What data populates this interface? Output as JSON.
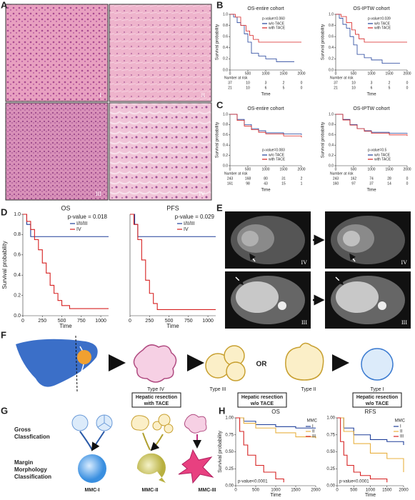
{
  "panel_labels": [
    "A",
    "B",
    "C",
    "D",
    "E",
    "F",
    "G",
    "H"
  ],
  "histology_labels": [
    "I",
    "II",
    "III",
    "IV"
  ],
  "ct_labels": [
    "IV",
    "IV",
    "III",
    "III"
  ],
  "flow": {
    "types": [
      "Type IV",
      "Type III",
      "Type II",
      "Type I"
    ],
    "or": "OR",
    "boxes": [
      [
        "Hepatic resection",
        "with  TACE"
      ],
      [
        "Hepatic resection",
        "w/o TACE"
      ],
      [
        "Hepatic resection",
        "w/o TACE"
      ]
    ]
  },
  "classification": {
    "gross": [
      "Gross",
      "Classfication"
    ],
    "margin": [
      "Margin",
      "Morphology",
      "Classification"
    ],
    "classes": [
      "MMC-I",
      "MMC-II",
      "MMC-III"
    ]
  },
  "plots": [
    {
      "title": "OS-entire cohort",
      "p_value": "p-value=0.060",
      "ylabel": "Survival probability",
      "xlabel": "Time",
      "xlim": [
        0,
        2000
      ],
      "ylim": [
        0,
        1
      ],
      "xticks": [
        0,
        500,
        1000,
        1500,
        2000
      ],
      "yticks": [
        {
          "value": 0,
          "label": "0.0"
        },
        0.2,
        0.4,
        0.6,
        0.8,
        {
          "value": 1,
          "label": "1.0"
        }
      ],
      "series": [
        {
          "name": "w/o TACE",
          "color": "#1f3f99",
          "x": [
            0,
            100,
            200,
            300,
            400,
            500,
            600,
            800,
            1000,
            1300,
            1800
          ],
          "values": [
            1,
            0.95,
            0.85,
            0.8,
            0.65,
            0.5,
            0.3,
            0.25,
            0.2,
            0.15,
            0.15
          ]
        },
        {
          "name": "with TACE",
          "color": "#d62020",
          "x": [
            0,
            150,
            300,
            450,
            550,
            650,
            800,
            1000,
            2000
          ],
          "values": [
            1,
            0.95,
            0.8,
            0.7,
            0.62,
            0.55,
            0.5,
            0.5,
            0.5
          ]
        }
      ],
      "risk_label": "Number at risk",
      "risk": [
        [
          "37",
          "10",
          "3",
          "2",
          "0"
        ],
        [
          "21",
          "10",
          "6",
          "5",
          "0"
        ]
      ]
    },
    {
      "title": "OS-IPTW cohort",
      "p_value": "p-value=0.039",
      "ylabel": "Survival probability",
      "xlabel": "Time",
      "xlim": [
        0,
        2000
      ],
      "ylim": [
        0,
        1
      ],
      "xticks": [
        0,
        500,
        1000,
        1500,
        2000
      ],
      "yticks": [
        {
          "value": 0,
          "label": "0.0"
        },
        0.2,
        0.4,
        0.6,
        0.8,
        {
          "value": 1,
          "label": "1.0"
        }
      ],
      "series": [
        {
          "name": "w/o TACE",
          "color": "#1f3f99",
          "x": [
            0,
            100,
            200,
            300,
            400,
            500,
            600,
            800,
            1000,
            1300,
            1800
          ],
          "values": [
            1,
            0.93,
            0.82,
            0.75,
            0.6,
            0.45,
            0.28,
            0.22,
            0.18,
            0.12,
            0.12
          ]
        },
        {
          "name": "with TACE",
          "color": "#d62020",
          "x": [
            0,
            150,
            300,
            450,
            550,
            650,
            800,
            1000,
            2000
          ],
          "values": [
            1,
            0.96,
            0.85,
            0.72,
            0.64,
            0.56,
            0.5,
            0.5,
            0.5
          ]
        }
      ],
      "risk_label": "Number at risk",
      "risk": [
        [
          "37",
          "10",
          "3",
          "2",
          "0"
        ],
        [
          "21",
          "10",
          "6",
          "5",
          "0"
        ]
      ]
    },
    {
      "title": "OS-entire cohort",
      "p_value": "p-value=0.083",
      "ylabel": "Survival probability",
      "xlabel": "Time",
      "xlim": [
        0,
        2000
      ],
      "ylim": [
        0,
        1
      ],
      "xticks": [
        0,
        500,
        1000,
        1500,
        2000
      ],
      "yticks": [
        {
          "value": 0,
          "label": "0.0"
        },
        0.2,
        0.4,
        0.6,
        0.8,
        {
          "value": 1,
          "label": "1.0"
        }
      ],
      "series": [
        {
          "name": "w/o TACE",
          "color": "#1f3f99",
          "x": [
            0,
            200,
            400,
            600,
            800,
            1000,
            1500,
            2000
          ],
          "values": [
            1,
            0.9,
            0.8,
            0.72,
            0.68,
            0.64,
            0.62,
            0.6
          ]
        },
        {
          "name": "with TACE",
          "color": "#d62020",
          "x": [
            0,
            200,
            400,
            600,
            800,
            1000,
            1500,
            2000
          ],
          "values": [
            1,
            0.88,
            0.77,
            0.7,
            0.65,
            0.62,
            0.58,
            0.55
          ]
        }
      ],
      "risk_label": "Number at risk",
      "risk": [
        [
          "243",
          "168",
          "80",
          "31",
          "2"
        ],
        [
          "161",
          "98",
          "43",
          "15",
          "1"
        ]
      ]
    },
    {
      "title": "OS-IPTW cohort",
      "p_value": "p-value=0.5",
      "ylabel": "Survival probability",
      "xlabel": "Time",
      "xlim": [
        0,
        2000
      ],
      "ylim": [
        0,
        1
      ],
      "xticks": [
        0,
        500,
        1000,
        1500,
        2000
      ],
      "yticks": [
        {
          "value": 0,
          "label": "0.0"
        },
        0.2,
        0.4,
        0.6,
        0.8,
        {
          "value": 1,
          "label": "1.0"
        }
      ],
      "series": [
        {
          "name": "w/o TACE",
          "color": "#1f3f99",
          "x": [
            0,
            200,
            400,
            600,
            800,
            1000,
            1500,
            2000
          ],
          "values": [
            1,
            0.9,
            0.8,
            0.72,
            0.68,
            0.65,
            0.63,
            0.62
          ]
        },
        {
          "name": "with TACE",
          "color": "#d62020",
          "x": [
            0,
            200,
            400,
            600,
            800,
            1000,
            1500,
            2000
          ],
          "values": [
            1,
            0.89,
            0.79,
            0.72,
            0.67,
            0.63,
            0.6,
            0.58
          ]
        }
      ],
      "risk_label": "Number at risk",
      "risk": [
        [
          "243",
          "162",
          "74",
          "28",
          "0"
        ],
        [
          "160",
          "97",
          "37",
          "14",
          "0"
        ]
      ]
    },
    {
      "title": "OS",
      "p_value": "p-value = 0.018",
      "ylabel": "Survival probability",
      "xlabel": "Time",
      "xlim": [
        0,
        1100
      ],
      "ylim": [
        0,
        1
      ],
      "xticks": [
        0,
        250,
        500,
        750,
        1000
      ],
      "yticks": [
        {
          "value": 0,
          "label": "0.0"
        },
        0.2,
        0.4,
        0.6,
        0.8,
        {
          "value": 1,
          "label": "1.0"
        }
      ],
      "series": [
        {
          "name": "I/II/III",
          "color": "#1f3f99",
          "x": [
            0,
            50,
            100,
            1100
          ],
          "values": [
            1,
            0.9,
            0.78,
            0.78
          ]
        },
        {
          "name": "IV",
          "color": "#d62020",
          "x": [
            0,
            50,
            100,
            150,
            200,
            250,
            300,
            350,
            400,
            450,
            500,
            600,
            1100
          ],
          "values": [
            1,
            0.93,
            0.85,
            0.75,
            0.65,
            0.52,
            0.42,
            0.3,
            0.22,
            0.15,
            0.1,
            0.07,
            0.07
          ]
        }
      ]
    },
    {
      "title": "PFS",
      "p_value": "p-value = 0.029",
      "xlabel": "Time",
      "xlim": [
        0,
        1100
      ],
      "ylim": [
        0,
        1
      ],
      "xticks": [
        0,
        250,
        500,
        750,
        1000
      ],
      "series": [
        {
          "name": "I/II/III",
          "color": "#1f3f99",
          "x": [
            0,
            60,
            100,
            1100
          ],
          "values": [
            1,
            0.9,
            0.78,
            0.78
          ]
        },
        {
          "name": "IV",
          "color": "#d62020",
          "x": [
            0,
            50,
            100,
            150,
            200,
            250,
            300,
            350,
            1100
          ],
          "values": [
            1,
            0.9,
            0.75,
            0.55,
            0.35,
            0.22,
            0.12,
            0.06,
            0.06
          ]
        }
      ]
    },
    {
      "title": "OS",
      "p_value": "p-value<0.0001",
      "legend_title": "MMC",
      "ylabel": "Survival probability",
      "xlabel": "Time",
      "xlim": [
        0,
        2000
      ],
      "ylim": [
        0,
        1
      ],
      "xticks": [
        0,
        500,
        1000,
        1500,
        2000
      ],
      "yticks": [
        {
          "value": 0,
          "label": "0.00"
        },
        0.25,
        {
          "value": 0.5,
          "label": "0.50"
        },
        0.75,
        {
          "value": 1,
          "label": "1.00"
        }
      ],
      "series": [
        {
          "name": "I",
          "color": "#1f3f99",
          "x": [
            0,
            200,
            500,
            1000,
            1500,
            2000
          ],
          "values": [
            1,
            0.95,
            0.9,
            0.87,
            0.85,
            0.85
          ]
        },
        {
          "name": "II",
          "color": "#e8b040",
          "x": [
            0,
            200,
            500,
            1000,
            1500,
            2000
          ],
          "values": [
            1,
            0.92,
            0.85,
            0.78,
            0.72,
            0.7
          ]
        },
        {
          "name": "III",
          "color": "#d62020",
          "x": [
            0,
            100,
            200,
            300,
            500,
            700,
            1000,
            1200
          ],
          "values": [
            1,
            0.8,
            0.6,
            0.45,
            0.3,
            0.2,
            0.1,
            0.05
          ]
        }
      ]
    },
    {
      "title": "RFS",
      "p_value": "p-value<0.0001",
      "legend_title": "MMC",
      "xlabel": "Time",
      "xlim": [
        0,
        2000
      ],
      "ylim": [
        0,
        1
      ],
      "xticks": [
        0,
        500,
        1000,
        1500,
        2000
      ],
      "yticks": [
        {
          "value": 0,
          "label": "0.00"
        },
        0.25,
        {
          "value": 0.5,
          "label": "0.50"
        },
        0.75,
        {
          "value": 1,
          "label": "1.00"
        }
      ],
      "series": [
        {
          "name": "I",
          "color": "#1f3f99",
          "x": [
            0,
            200,
            500,
            1000,
            1500,
            2000
          ],
          "values": [
            1,
            0.85,
            0.75,
            0.68,
            0.65,
            0.6
          ]
        },
        {
          "name": "II",
          "color": "#e8b040",
          "x": [
            0,
            200,
            500,
            1000,
            1500,
            2000
          ],
          "values": [
            1,
            0.8,
            0.62,
            0.48,
            0.4,
            0.2
          ]
        },
        {
          "name": "III",
          "color": "#d62020",
          "x": [
            0,
            100,
            200,
            300,
            500,
            700,
            1000,
            1500
          ],
          "values": [
            1,
            0.65,
            0.45,
            0.3,
            0.2,
            0.15,
            0.1,
            0.05
          ]
        }
      ]
    }
  ]
}
